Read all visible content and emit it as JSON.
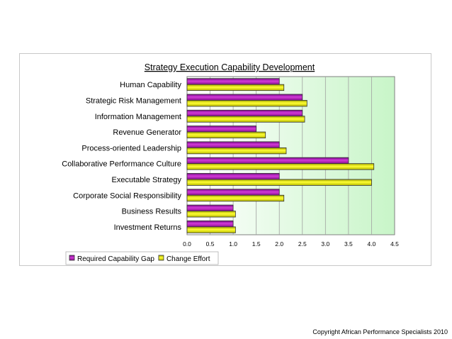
{
  "chart_data": {
    "type": "bar",
    "orientation": "horizontal",
    "title": "Strategy Execution Capability Development",
    "categories": [
      "Human Capability",
      "Strategic Risk Management",
      "Information Management",
      "Revenue Generator",
      "Process-oriented Leadership",
      "Collaborative Performance Culture",
      "Executable Strategy",
      "Corporate Social Responsibility",
      "Business Results",
      "Investment Returns"
    ],
    "series": [
      {
        "name": "Required Capability Gap",
        "color": "#cc00cc",
        "values": [
          2.0,
          2.5,
          2.5,
          1.5,
          2.0,
          3.5,
          2.0,
          2.0,
          1.0,
          1.0
        ]
      },
      {
        "name": "Change Effort",
        "color": "#e6e600",
        "values": [
          2.1,
          2.6,
          2.55,
          1.7,
          2.15,
          4.05,
          4.0,
          2.1,
          1.05,
          1.05
        ]
      }
    ],
    "xlim": [
      0,
      4.5
    ],
    "xticks": [
      "0.0",
      "0.5",
      "1.0",
      "1.5",
      "2.0",
      "2.5",
      "3.0",
      "3.5",
      "4.0",
      "4.5"
    ],
    "grid": true,
    "legend_position": "bottom-left",
    "plot_background": "gradient white to light green"
  },
  "footer": {
    "copyright": "Copyright African Performance Specialists 2010"
  }
}
